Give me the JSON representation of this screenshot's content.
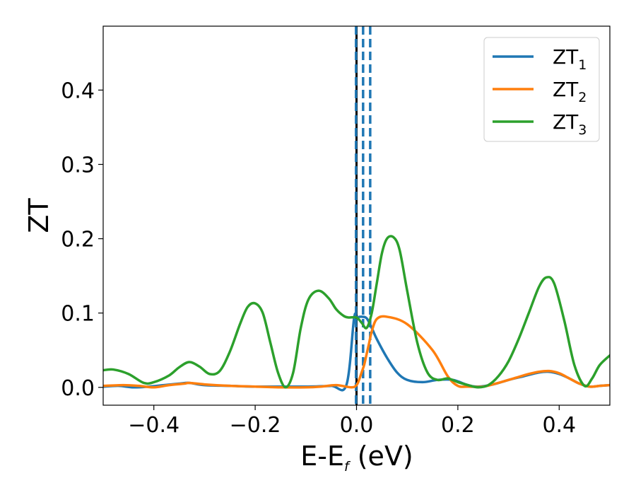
{
  "chart_data": {
    "type": "line",
    "xlabel": {
      "main": "E-E",
      "sub": "f",
      "unit": " (eV)"
    },
    "ylabel": "ZT",
    "xlim": [
      -0.5,
      0.5
    ],
    "ylim": [
      -0.024,
      0.486
    ],
    "xticks": [
      -0.4,
      -0.2,
      0.0,
      0.2,
      0.4
    ],
    "xtick_labels": [
      "−0.4",
      "−0.2",
      "0.0",
      "0.2",
      "0.4"
    ],
    "yticks": [
      0.0,
      0.1,
      0.2,
      0.3,
      0.4
    ],
    "ytick_labels": [
      "0.0",
      "0.1",
      "0.2",
      "0.3",
      "0.4"
    ],
    "legend_position": "top-right",
    "vertical_lines": [
      {
        "x": 0.0,
        "style": "solid",
        "color": "#000000"
      },
      {
        "x": -0.001,
        "style": "dashed",
        "color": "#1f77b4"
      },
      {
        "x": 0.013,
        "style": "dashed",
        "color": "#1f77b4"
      },
      {
        "x": 0.027,
        "style": "dashed",
        "color": "#1f77b4"
      }
    ],
    "series": [
      {
        "name": "ZT",
        "sub": "1",
        "color": "#1f77b4",
        "x": [
          -0.5,
          -0.47,
          -0.44,
          -0.41,
          -0.38,
          -0.35,
          -0.33,
          -0.3,
          -0.25,
          -0.2,
          -0.15,
          -0.1,
          -0.05,
          -0.02,
          -0.005,
          0.0,
          0.01,
          0.02,
          0.03,
          0.04,
          0.06,
          0.08,
          0.1,
          0.13,
          0.16,
          0.19,
          0.22,
          0.24,
          0.27,
          0.3,
          0.33,
          0.36,
          0.38,
          0.4,
          0.42,
          0.44,
          0.46,
          0.48,
          0.5
        ],
        "y": [
          0.001,
          0.002,
          0.0,
          0.001,
          0.003,
          0.005,
          0.006,
          0.003,
          0.002,
          0.001,
          0.001,
          0.001,
          0.002,
          0.003,
          0.092,
          0.094,
          0.095,
          0.093,
          0.08,
          0.065,
          0.04,
          0.02,
          0.01,
          0.007,
          0.01,
          0.01,
          0.003,
          0.001,
          0.004,
          0.01,
          0.015,
          0.02,
          0.021,
          0.018,
          0.012,
          0.005,
          0.001,
          0.002,
          0.003
        ]
      },
      {
        "name": "ZT",
        "sub": "2",
        "color": "#ff7f0e",
        "x": [
          -0.5,
          -0.46,
          -0.43,
          -0.4,
          -0.37,
          -0.34,
          -0.33,
          -0.3,
          -0.25,
          -0.2,
          -0.15,
          -0.1,
          -0.07,
          -0.04,
          -0.01,
          0.0,
          0.005,
          0.01,
          0.015,
          0.02,
          0.025,
          0.03,
          0.04,
          0.06,
          0.1,
          0.15,
          0.18,
          0.2,
          0.22,
          0.25,
          0.28,
          0.31,
          0.34,
          0.36,
          0.38,
          0.4,
          0.42,
          0.44,
          0.46,
          0.48,
          0.5
        ],
        "y": [
          0.002,
          0.003,
          0.002,
          0.0,
          0.003,
          0.005,
          0.006,
          0.004,
          0.002,
          0.001,
          0.0,
          0.0,
          0.001,
          0.003,
          0.0,
          0.003,
          0.01,
          0.02,
          0.03,
          0.045,
          0.06,
          0.075,
          0.092,
          0.095,
          0.085,
          0.05,
          0.015,
          0.002,
          0.001,
          0.001,
          0.006,
          0.012,
          0.018,
          0.021,
          0.022,
          0.019,
          0.012,
          0.005,
          0.001,
          0.002,
          0.003
        ]
      },
      {
        "name": "ZT",
        "sub": "3",
        "color": "#2ca02c",
        "x": [
          -0.5,
          -0.48,
          -0.45,
          -0.42,
          -0.4,
          -0.37,
          -0.35,
          -0.33,
          -0.31,
          -0.29,
          -0.27,
          -0.25,
          -0.23,
          -0.215,
          -0.2,
          -0.185,
          -0.17,
          -0.155,
          -0.14,
          -0.125,
          -0.11,
          -0.095,
          -0.075,
          -0.055,
          -0.04,
          -0.025,
          -0.015,
          0.0,
          0.01,
          0.02,
          0.03,
          0.04,
          0.05,
          0.06,
          0.073,
          0.085,
          0.1,
          0.12,
          0.14,
          0.16,
          0.18,
          0.2,
          0.22,
          0.24,
          0.26,
          0.28,
          0.3,
          0.32,
          0.34,
          0.36,
          0.375,
          0.39,
          0.41,
          0.43,
          0.45,
          0.465,
          0.48,
          0.5
        ],
        "y": [
          0.023,
          0.024,
          0.018,
          0.006,
          0.007,
          0.016,
          0.027,
          0.034,
          0.028,
          0.018,
          0.022,
          0.048,
          0.085,
          0.108,
          0.113,
          0.1,
          0.06,
          0.02,
          0.0,
          0.02,
          0.08,
          0.118,
          0.13,
          0.12,
          0.105,
          0.096,
          0.094,
          0.094,
          0.087,
          0.08,
          0.1,
          0.14,
          0.18,
          0.2,
          0.202,
          0.185,
          0.13,
          0.06,
          0.02,
          0.01,
          0.012,
          0.007,
          0.003,
          0.0,
          0.003,
          0.015,
          0.035,
          0.065,
          0.1,
          0.135,
          0.148,
          0.14,
          0.09,
          0.03,
          0.002,
          0.012,
          0.03,
          0.043
        ]
      }
    ]
  }
}
